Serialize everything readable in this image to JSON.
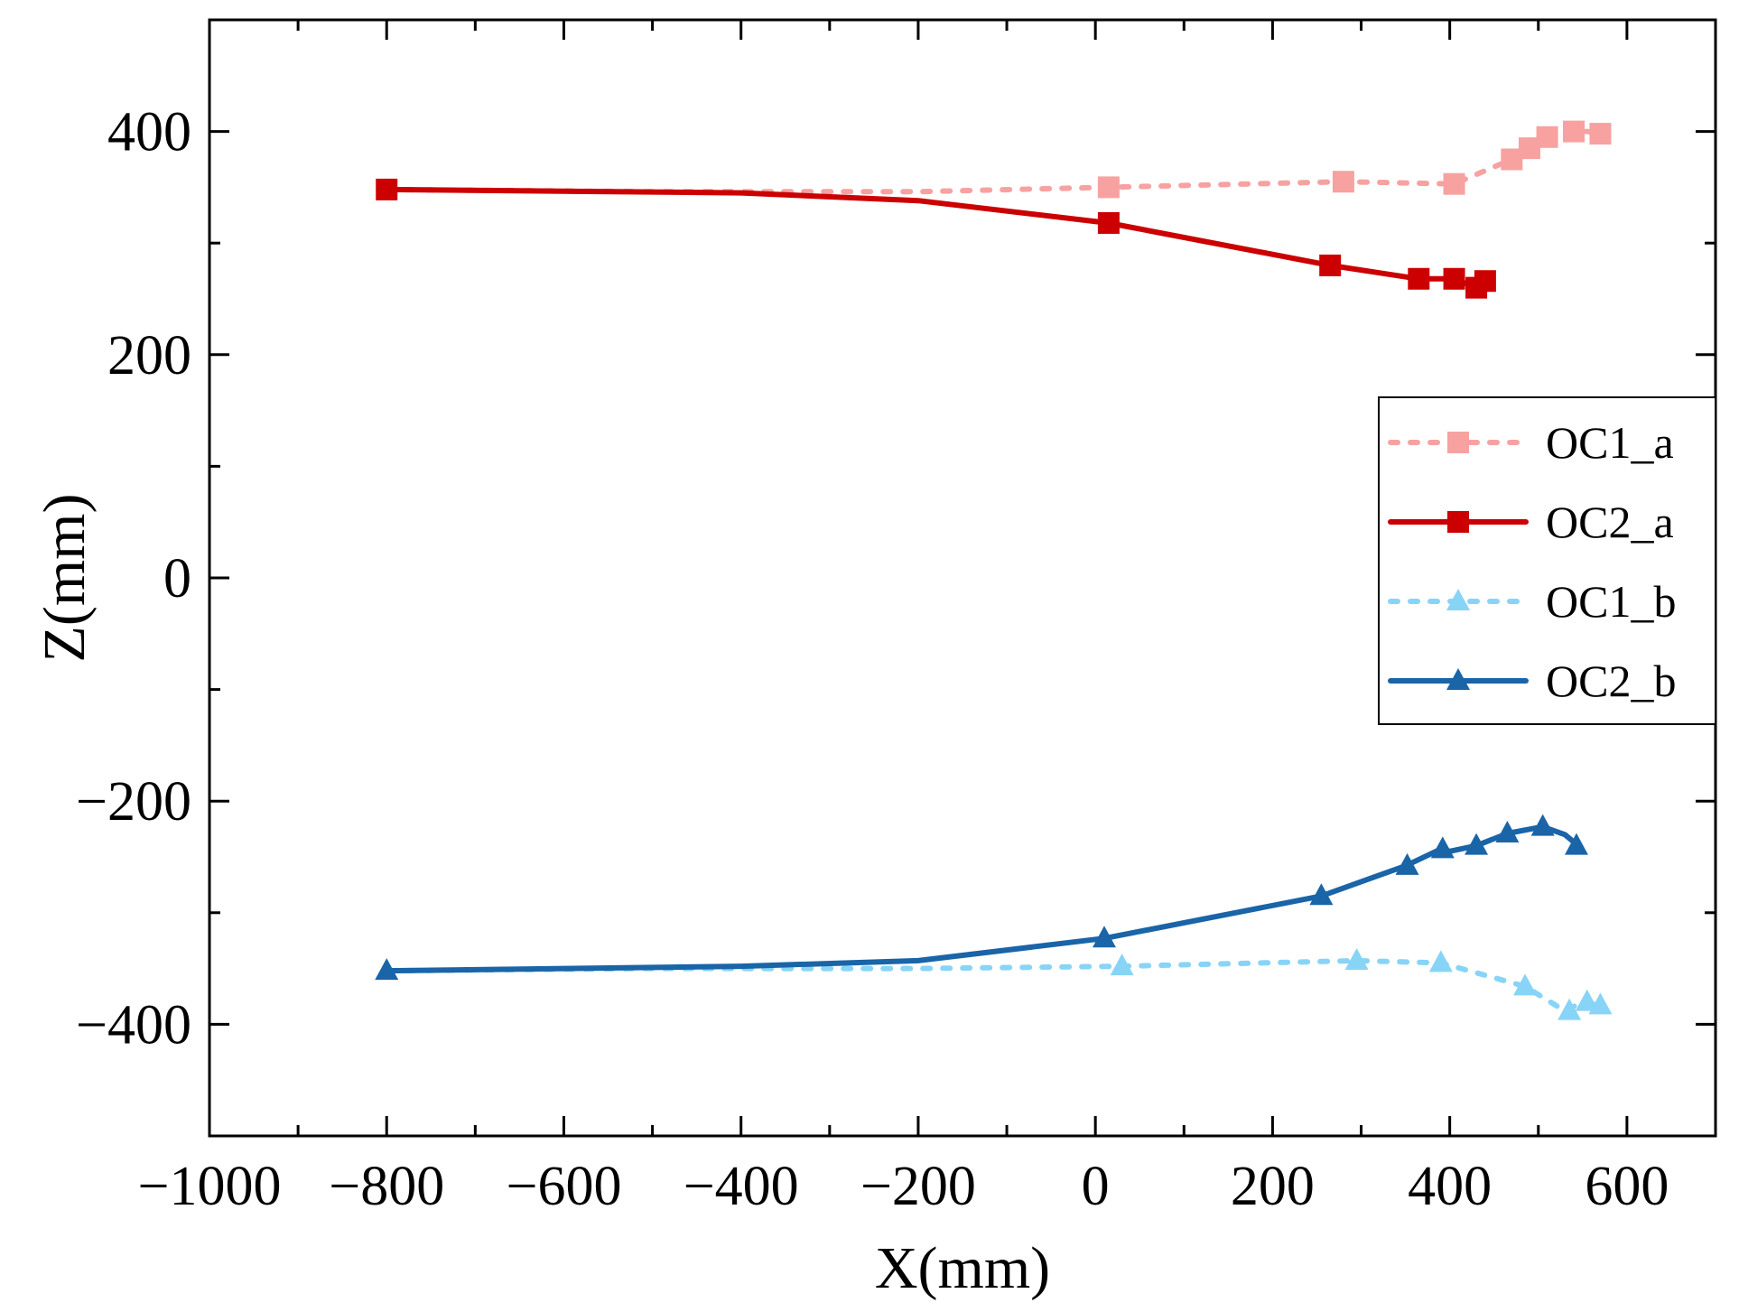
{
  "chart_data": {
    "type": "line",
    "title": "",
    "xlabel": "X(mm)",
    "ylabel": "Z(mm)",
    "xlim": [
      -1000,
      700
    ],
    "ylim": [
      -500,
      500
    ],
    "x_ticks": [
      -1000,
      -800,
      -600,
      -400,
      -200,
      0,
      200,
      400,
      600
    ],
    "x_tick_labels": [
      "−1000",
      "−800",
      "−600",
      "−400",
      "−200",
      "0",
      "200",
      "400",
      "600"
    ],
    "y_ticks": [
      -400,
      -200,
      0,
      200,
      400
    ],
    "y_tick_labels": [
      "−400",
      "−200",
      "0",
      "200",
      "400"
    ],
    "grid": false,
    "legend_position": "right-middle",
    "series": [
      {
        "name": "OC1_a",
        "color": "#f7a1a1",
        "line_style": "dashed",
        "marker": "square",
        "x": [
          -800,
          -500,
          -200,
          15,
          280,
          405,
          470,
          490,
          510,
          540,
          555,
          570
        ],
        "y": [
          348,
          346,
          346,
          350,
          355,
          353,
          375,
          385,
          395,
          400,
          400,
          398
        ],
        "markers": [
          [
            15,
            350
          ],
          [
            280,
            355
          ],
          [
            405,
            353
          ],
          [
            470,
            375
          ],
          [
            490,
            385
          ],
          [
            510,
            395
          ],
          [
            540,
            400
          ],
          [
            570,
            398
          ]
        ]
      },
      {
        "name": "OC2_a",
        "color": "#cc0000",
        "line_style": "solid",
        "marker": "square",
        "x": [
          -800,
          -400,
          -200,
          15,
          265,
          365,
          405,
          430,
          440
        ],
        "y": [
          348,
          345,
          338,
          318,
          280,
          268,
          268,
          260,
          266
        ],
        "markers": [
          [
            -800,
            348
          ],
          [
            15,
            318
          ],
          [
            265,
            280
          ],
          [
            365,
            268
          ],
          [
            405,
            268
          ],
          [
            430,
            260
          ],
          [
            440,
            266
          ]
        ]
      },
      {
        "name": "OC1_b",
        "color": "#88d4f7",
        "line_style": "dashed",
        "marker": "triangle",
        "x": [
          -800,
          -500,
          -200,
          30,
          295,
          390,
          485,
          530,
          550,
          570
        ],
        "y": [
          -352,
          -350,
          -350,
          -348,
          -343,
          -345,
          -366,
          -388,
          -380,
          -383
        ],
        "markers": [
          [
            30,
            -348
          ],
          [
            295,
            -343
          ],
          [
            390,
            -345
          ],
          [
            485,
            -366
          ],
          [
            535,
            -388
          ],
          [
            555,
            -380
          ],
          [
            570,
            -383
          ]
        ]
      },
      {
        "name": "OC2_b",
        "color": "#1a64a8",
        "line_style": "solid",
        "marker": "triangle",
        "x": [
          -800,
          -400,
          -200,
          10,
          255,
          350,
          390,
          400,
          430,
          465,
          505,
          530,
          545
        ],
        "y": [
          -352,
          -348,
          -343,
          -323,
          -285,
          -258,
          -243,
          -245,
          -240,
          -229,
          -223,
          -230,
          -240
        ],
        "markers": [
          [
            -800,
            -352
          ],
          [
            10,
            -323
          ],
          [
            255,
            -285
          ],
          [
            352,
            -258
          ],
          [
            392,
            -243
          ],
          [
            430,
            -240
          ],
          [
            465,
            -229
          ],
          [
            505,
            -223
          ],
          [
            543,
            -240
          ]
        ]
      }
    ]
  }
}
